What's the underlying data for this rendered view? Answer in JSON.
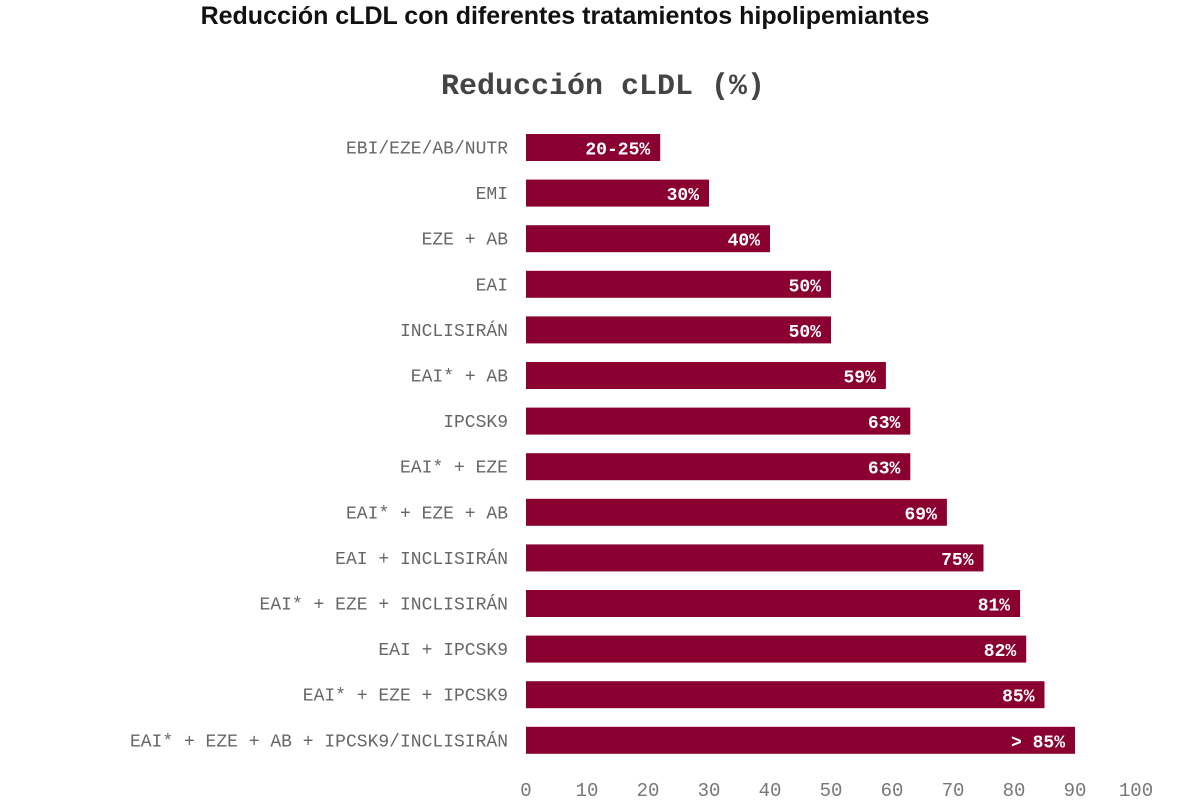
{
  "page": {
    "title": "Reducción cLDL con diferentes tratamientos hipolipemiantes"
  },
  "chart_data": {
    "type": "bar",
    "orientation": "horizontal",
    "title": "Reducción cLDL (%)",
    "bar_color": "#8a0030",
    "categories": [
      "EBI/EZE/AB/NUTR",
      "EMI",
      "EZE + AB",
      "EAI",
      "INCLISIRÁN",
      "EAI* + AB",
      "IPCSK9",
      "EAI* + EZE",
      "EAI* + EZE + AB",
      "EAI + INCLISIRÁN",
      "EAI* + EZE + INCLISIRÁN",
      "EAI + IPCSK9",
      "EAI* + EZE + IPCSK9",
      "EAI* + EZE + AB + IPCSK9/INCLISIRÁN"
    ],
    "values": [
      22,
      30,
      40,
      50,
      50,
      59,
      63,
      63,
      69,
      75,
      81,
      82,
      85,
      90
    ],
    "data_labels": [
      "20-25%",
      "30%",
      "40%",
      "50%",
      "50%",
      "59%",
      "63%",
      "63%",
      "69%",
      "75%",
      "81%",
      "82%",
      "85%",
      "> 85%"
    ],
    "xlim": [
      0,
      100
    ],
    "xticks": [
      "0",
      "10",
      "20",
      "30",
      "40",
      "50",
      "60",
      "70",
      "80",
      "90",
      "100"
    ],
    "grid": false,
    "legend": "none"
  }
}
